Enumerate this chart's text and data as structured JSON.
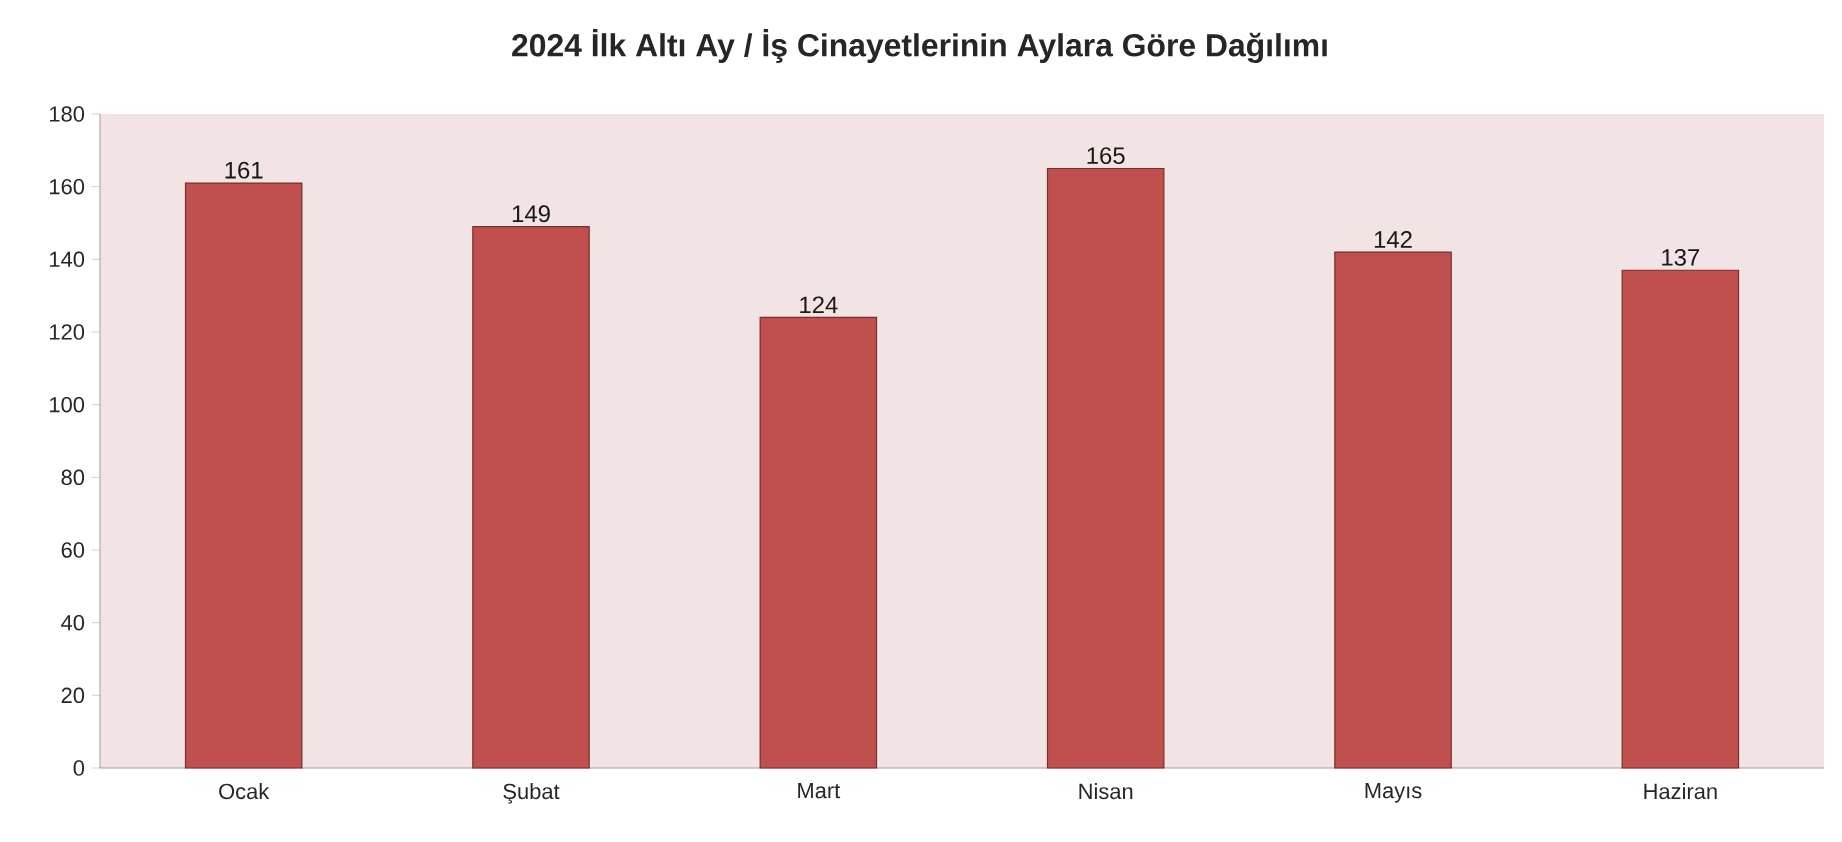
{
  "chart_data": {
    "type": "bar",
    "title": "2024 İlk Altı Ay / İş Cinayetlerinin Aylara Göre Dağılımı",
    "categories": [
      "Ocak",
      "Şubat",
      "Mart",
      "Nisan",
      "Mayıs",
      "Haziran"
    ],
    "values": [
      161,
      149,
      124,
      165,
      142,
      137
    ],
    "color": "#c0504d",
    "ylim": [
      0,
      180
    ],
    "yticks": [
      0,
      20,
      40,
      60,
      80,
      100,
      120,
      140,
      160,
      180
    ],
    "data_labels": true,
    "grid": false
  }
}
